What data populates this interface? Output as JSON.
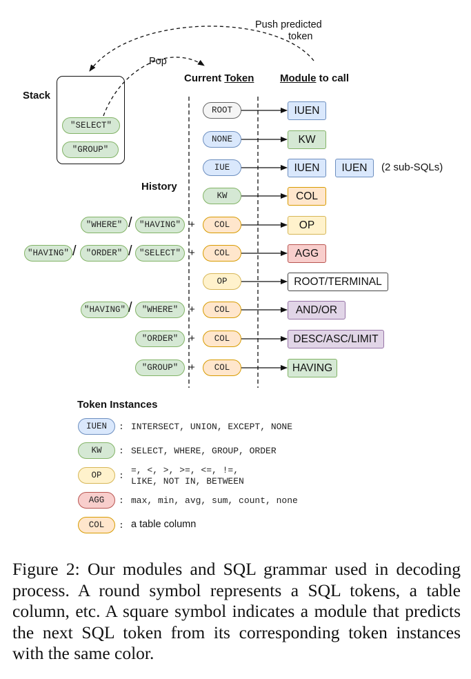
{
  "headers": {
    "push_line1": "Push predicted",
    "push_line2": "token",
    "pop": "Pop",
    "current_pre": "Current ",
    "current_ul": "Token",
    "module_ul": "Module",
    "module_post": " to call",
    "stack": "Stack",
    "history": "History"
  },
  "stack_items": [
    "\"SELECT\"",
    "\"GROUP\""
  ],
  "rows": [
    {
      "history": [],
      "token": "ROOT",
      "module": [
        "IUEN"
      ]
    },
    {
      "history": [],
      "token": "NONE",
      "module": [
        "KW"
      ]
    },
    {
      "history": [],
      "token": "IUE",
      "module": [
        "IUEN",
        "IUEN"
      ],
      "note": "(2 sub-SQLs)"
    },
    {
      "history": [],
      "token": "KW",
      "module": [
        "COL"
      ]
    },
    {
      "history": [
        "\"WHERE\"",
        "\"HAVING\""
      ],
      "token": "COL",
      "module": [
        "OP"
      ]
    },
    {
      "history": [
        "\"HAVING\"",
        "\"ORDER\"",
        "\"SELECT\""
      ],
      "token": "COL",
      "module": [
        "AGG"
      ]
    },
    {
      "history": [],
      "token": "OP",
      "module": [
        "ROOT/TERMINAL"
      ]
    },
    {
      "history": [
        "\"HAVING\"",
        "\"WHERE\""
      ],
      "token": "COL",
      "module": [
        "AND/OR"
      ]
    },
    {
      "history": [
        "\"ORDER\""
      ],
      "token": "COL",
      "module": [
        "DESC/ASC/LIMIT"
      ]
    },
    {
      "history": [
        "\"GROUP\""
      ],
      "token": "COL",
      "module": [
        "HAVING"
      ]
    }
  ],
  "plus": "+",
  "slash": "/",
  "legend": {
    "title": "Token Instances",
    "items": [
      {
        "token": "IUEN",
        "sep": ":",
        "text": "INTERSECT, UNION, EXCEPT, NONE"
      },
      {
        "token": "KW",
        "sep": ":",
        "text": "SELECT, WHERE, GROUP, ORDER"
      },
      {
        "token": "OP",
        "sep": ":",
        "text": "=, <, >, >=, <=, !=,",
        "text2": "LIKE, NOT IN, BETWEEN"
      },
      {
        "token": "AGG",
        "sep": ":",
        "text": "max, min, avg, sum, count, none"
      },
      {
        "token": "COL",
        "sep": ":",
        "text": "a table column"
      }
    ]
  },
  "caption": "Figure 2: Our modules and SQL grammar used in decoding process. A round symbol represents a SQL tokens, a table column, etc. A square symbol indicates a module that predicts the next SQL token from its corresponding token instances with the same color.",
  "colors": {
    "green": "#d5e8d4",
    "blue": "#dae8fc",
    "orange": "#ffe6cc",
    "yellow": "#fff2cc",
    "red": "#f8cecc",
    "purple": "#e1d5e7"
  }
}
